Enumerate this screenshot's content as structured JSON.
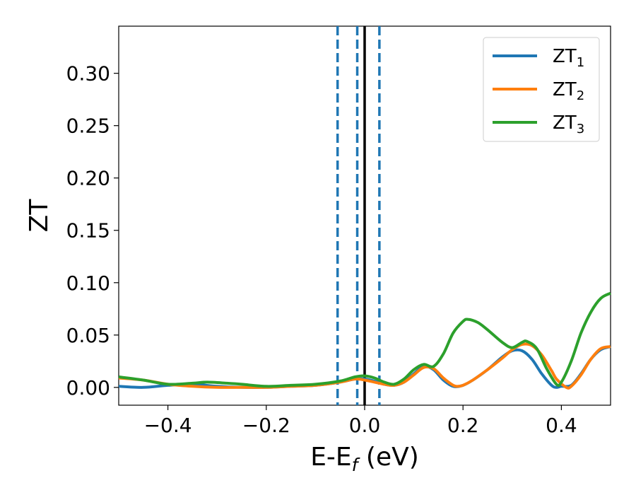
{
  "chart_data": {
    "type": "line",
    "title": "",
    "xlabel": {
      "main": "E-E",
      "sub": "f",
      "unit": " (eV)"
    },
    "ylabel": "ZT",
    "xlim": [
      -0.5,
      0.5
    ],
    "ylim": [
      -0.017,
      0.345
    ],
    "xticks": [
      -0.4,
      -0.2,
      0.0,
      0.2,
      0.4
    ],
    "xtick_labels": [
      "−0.4",
      "−0.2",
      "0.0",
      "0.2",
      "0.4"
    ],
    "yticks": [
      0.0,
      0.05,
      0.1,
      0.15,
      0.2,
      0.25,
      0.3
    ],
    "ytick_labels": [
      "0.00",
      "0.05",
      "0.10",
      "0.15",
      "0.20",
      "0.25",
      "0.30"
    ],
    "grid": false,
    "legend_position": "top-right",
    "vlines": [
      {
        "x": 0.0,
        "color": "#000000",
        "style": "solid"
      },
      {
        "x": -0.055,
        "color": "#1f77b4",
        "style": "dashed"
      },
      {
        "x": -0.015,
        "color": "#1f77b4",
        "style": "dashed"
      },
      {
        "x": 0.03,
        "color": "#1f77b4",
        "style": "dashed"
      }
    ],
    "series": [
      {
        "name": "ZT",
        "sub": "1",
        "color": "#1f77b4",
        "x": [
          -0.5,
          -0.45,
          -0.4,
          -0.35,
          -0.3,
          -0.25,
          -0.2,
          -0.15,
          -0.1,
          -0.05,
          -0.02,
          0.0,
          0.02,
          0.04,
          0.06,
          0.08,
          0.1,
          0.12,
          0.14,
          0.16,
          0.18,
          0.2,
          0.22,
          0.25,
          0.28,
          0.3,
          0.32,
          0.34,
          0.36,
          0.38,
          0.39,
          0.4,
          0.42,
          0.44,
          0.46,
          0.48,
          0.5
        ],
        "y": [
          0.001,
          0.0,
          0.002,
          0.003,
          0.001,
          0.0,
          0.0,
          0.001,
          0.002,
          0.005,
          0.008,
          0.008,
          0.006,
          0.003,
          0.002,
          0.005,
          0.013,
          0.02,
          0.017,
          0.007,
          0.001,
          0.002,
          0.007,
          0.017,
          0.029,
          0.035,
          0.035,
          0.027,
          0.013,
          0.002,
          0.0,
          0.001,
          0.002,
          0.013,
          0.027,
          0.036,
          0.039
        ]
      },
      {
        "name": "ZT",
        "sub": "2",
        "color": "#ff7f0e",
        "x": [
          -0.5,
          -0.45,
          -0.4,
          -0.35,
          -0.3,
          -0.25,
          -0.2,
          -0.15,
          -0.1,
          -0.05,
          -0.02,
          0.0,
          0.02,
          0.04,
          0.06,
          0.08,
          0.1,
          0.12,
          0.14,
          0.16,
          0.18,
          0.19,
          0.2,
          0.22,
          0.25,
          0.28,
          0.3,
          0.32,
          0.34,
          0.36,
          0.38,
          0.39,
          0.41,
          0.42,
          0.44,
          0.46,
          0.48,
          0.5
        ],
        "y": [
          0.009,
          0.007,
          0.003,
          0.001,
          0.0,
          0.0,
          0.0,
          0.001,
          0.002,
          0.005,
          0.008,
          0.007,
          0.005,
          0.003,
          0.002,
          0.005,
          0.012,
          0.019,
          0.018,
          0.009,
          0.002,
          0.001,
          0.002,
          0.007,
          0.017,
          0.028,
          0.036,
          0.041,
          0.04,
          0.031,
          0.016,
          0.008,
          0.0,
          0.001,
          0.012,
          0.027,
          0.037,
          0.039
        ]
      },
      {
        "name": "ZT",
        "sub": "3",
        "color": "#2ca02c",
        "x": [
          -0.5,
          -0.45,
          -0.4,
          -0.35,
          -0.32,
          -0.28,
          -0.25,
          -0.2,
          -0.15,
          -0.1,
          -0.05,
          -0.02,
          0.0,
          0.02,
          0.04,
          0.06,
          0.08,
          0.1,
          0.12,
          0.14,
          0.16,
          0.18,
          0.2,
          0.21,
          0.23,
          0.25,
          0.28,
          0.3,
          0.32,
          0.33,
          0.35,
          0.37,
          0.39,
          0.4,
          0.42,
          0.44,
          0.46,
          0.48,
          0.5
        ],
        "y": [
          0.01,
          0.007,
          0.003,
          0.004,
          0.005,
          0.004,
          0.003,
          0.001,
          0.002,
          0.003,
          0.006,
          0.01,
          0.011,
          0.009,
          0.005,
          0.003,
          0.008,
          0.017,
          0.022,
          0.02,
          0.032,
          0.052,
          0.063,
          0.065,
          0.062,
          0.055,
          0.043,
          0.038,
          0.043,
          0.044,
          0.037,
          0.018,
          0.003,
          0.005,
          0.025,
          0.052,
          0.072,
          0.085,
          0.09
        ]
      }
    ]
  }
}
